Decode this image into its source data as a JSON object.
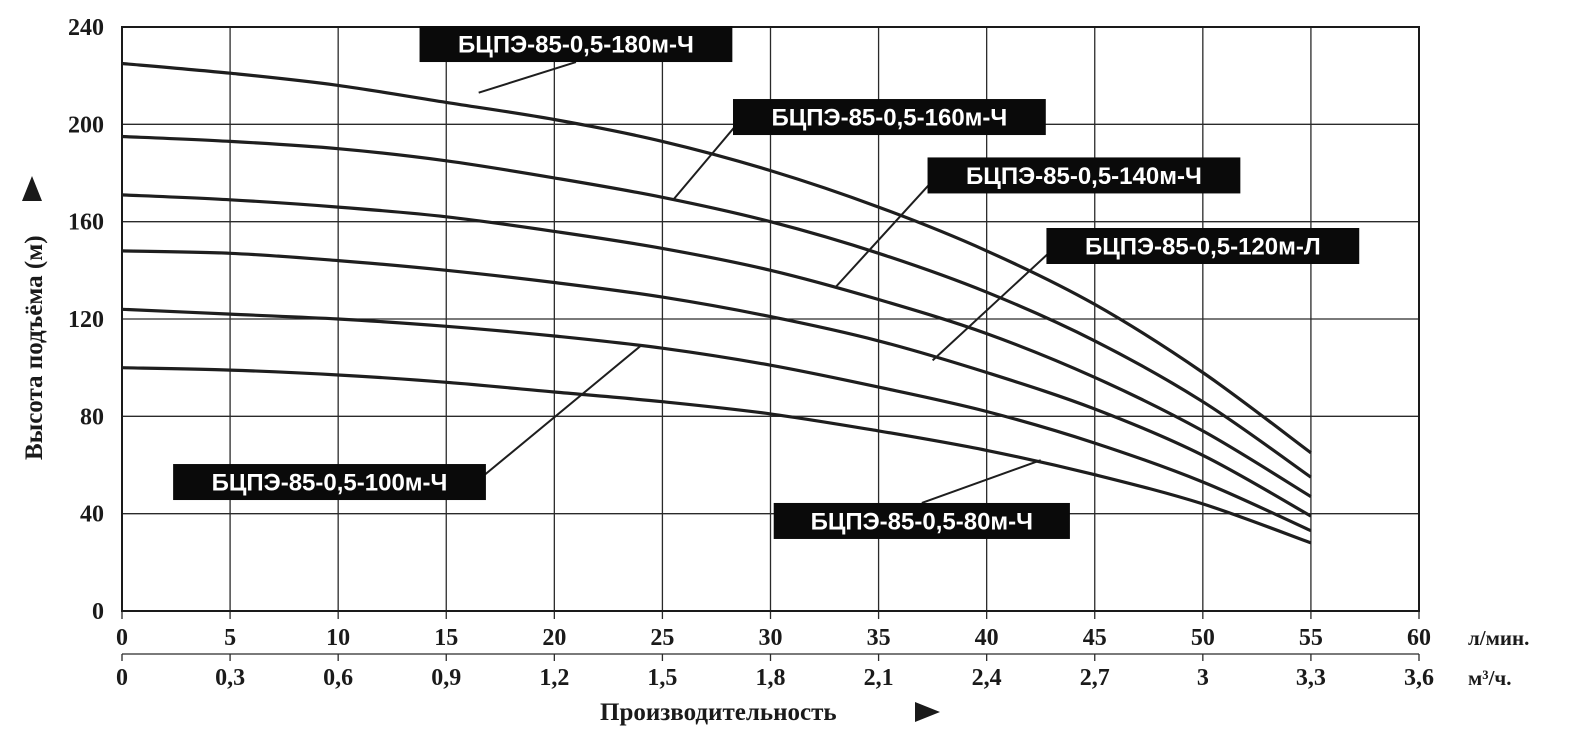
{
  "chart_data": {
    "type": "line",
    "title": "",
    "ylabel": "Высота подъёма (м)",
    "xlabel": "Производительность",
    "ylim": [
      0,
      240
    ],
    "xlim": [
      0,
      60
    ],
    "y_ticks": [
      "0",
      "40",
      "80",
      "120",
      "160",
      "200",
      "240"
    ],
    "x_ticks_primary": [
      "0",
      "5",
      "10",
      "15",
      "20",
      "25",
      "30",
      "35",
      "40",
      "45",
      "50",
      "55",
      "60"
    ],
    "x_ticks_secondary": [
      "0",
      "0,3",
      "0,6",
      "0,9",
      "1,2",
      "1,5",
      "1,8",
      "2,1",
      "2,4",
      "2,7",
      "3",
      "3,3",
      "3,6"
    ],
    "x_unit_primary": "л/мин.",
    "x_unit_secondary": "м³/ч.",
    "grid": true,
    "series": [
      {
        "name": "БЦПЭ-85-0,5-180м-Ч",
        "x": [
          0,
          5,
          10,
          15,
          20,
          25,
          30,
          35,
          40,
          45,
          50,
          55
        ],
        "y": [
          225,
          221,
          216,
          209,
          202,
          193,
          181,
          166,
          148,
          126,
          98,
          65
        ]
      },
      {
        "name": "БЦПЭ-85-0,5-160м-Ч",
        "x": [
          0,
          5,
          10,
          15,
          20,
          25,
          30,
          35,
          40,
          45,
          50,
          55
        ],
        "y": [
          195,
          193,
          190,
          185,
          178,
          170,
          160,
          147,
          131,
          111,
          86,
          55
        ]
      },
      {
        "name": "БЦПЭ-85-0,5-140м-Ч",
        "x": [
          0,
          5,
          10,
          15,
          20,
          25,
          30,
          35,
          40,
          45,
          50,
          55
        ],
        "y": [
          171,
          169,
          166,
          162,
          156,
          149,
          140,
          128,
          114,
          96,
          74,
          47
        ]
      },
      {
        "name": "БЦПЭ-85-0,5-120м-Л",
        "x": [
          0,
          5,
          10,
          15,
          20,
          25,
          30,
          35,
          40,
          45,
          50,
          55
        ],
        "y": [
          148,
          147,
          144,
          140,
          135,
          129,
          121,
          111,
          98,
          83,
          64,
          39
        ]
      },
      {
        "name": "БЦПЭ-85-0,5-100м-Ч",
        "x": [
          0,
          5,
          10,
          15,
          20,
          25,
          30,
          35,
          40,
          45,
          50,
          55
        ],
        "y": [
          124,
          122,
          120,
          117,
          113,
          108,
          101,
          92,
          82,
          69,
          53,
          33
        ]
      },
      {
        "name": "БЦПЭ-85-0,5-80м-Ч",
        "x": [
          0,
          5,
          10,
          15,
          20,
          25,
          30,
          35,
          40,
          45,
          50,
          55
        ],
        "y": [
          100,
          99,
          97,
          94,
          90,
          86,
          81,
          74,
          66,
          56,
          44,
          28
        ]
      }
    ],
    "annotations": [
      {
        "text": "БЦПЭ-85-0,5-180м-Ч",
        "series": 0,
        "x": 16.5,
        "y": 213,
        "label_x": 21,
        "label_y": 233
      },
      {
        "text": "БЦПЭ-85-0,5-160м-Ч",
        "series": 1,
        "x": 25.5,
        "y": 169,
        "label_x": 35.5,
        "label_y": 203
      },
      {
        "text": "БЦПЭ-85-0,5-140м-Ч",
        "series": 2,
        "x": 33,
        "y": 133,
        "label_x": 44.5,
        "label_y": 179
      },
      {
        "text": "БЦПЭ-85-0,5-120м-Л",
        "series": 3,
        "x": 37.5,
        "y": 103,
        "label_x": 50,
        "label_y": 150
      },
      {
        "text": "БЦПЭ-85-0,5-100м-Ч",
        "series": 4,
        "x": 24,
        "y": 109,
        "label_x": 9.6,
        "label_y": 53
      },
      {
        "text": "БЦПЭ-85-0,5-80м-Ч",
        "series": 5,
        "x": 42.5,
        "y": 62,
        "label_x": 37,
        "label_y": 37
      }
    ]
  }
}
